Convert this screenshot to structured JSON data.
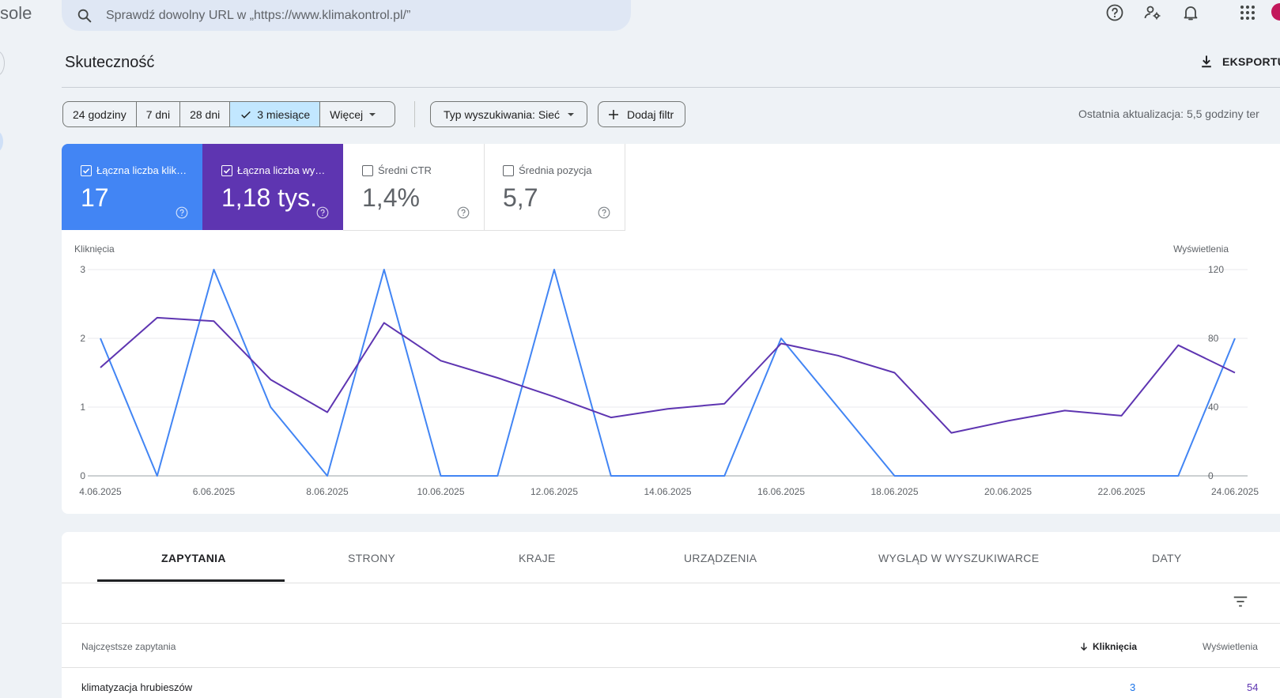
{
  "app": {
    "name_fragment": "sole"
  },
  "search": {
    "placeholder": "Sprawdź dowolny URL w „https://www.klimakontrol.pl/”"
  },
  "header": {
    "title": "Skuteczność",
    "export_label": "EKSPORTU"
  },
  "date_range": {
    "options": [
      "24 godziny",
      "7 dni",
      "28 dni",
      "3 miesiące",
      "Więcej"
    ],
    "selected": "3 miesiące"
  },
  "filters": {
    "search_type": "Typ wyszukiwania: Sieć",
    "add_filter": "Dodaj filtr",
    "last_update": "Ostatnia aktualizacja: 5,5 godziny ter"
  },
  "metrics": [
    {
      "label": "Łączna liczba klik…",
      "value": "17",
      "checked": true,
      "color": "#4285f4"
    },
    {
      "label": "Łączna liczba wy…",
      "value": "1,18 tys.",
      "checked": true,
      "color": "#5e35b1"
    },
    {
      "label": "Średni CTR",
      "value": "1,4%",
      "checked": false
    },
    {
      "label": "Średnia pozycja",
      "value": "5,7",
      "checked": false
    }
  ],
  "chart_data": {
    "type": "line",
    "x": [
      "4.06.2025",
      "5.06.2025",
      "6.06.2025",
      "7.06.2025",
      "8.06.2025",
      "9.06.2025",
      "10.06.2025",
      "11.06.2025",
      "12.06.2025",
      "13.06.2025",
      "14.06.2025",
      "15.06.2025",
      "16.06.2025",
      "17.06.2025",
      "18.06.2025",
      "19.06.2025",
      "20.06.2025",
      "21.06.2025",
      "22.06.2025",
      "23.06.2025",
      "24.06.2025"
    ],
    "x_tick_labels": [
      "4.06.2025",
      "6.06.2025",
      "8.06.2025",
      "10.06.2025",
      "12.06.2025",
      "14.06.2025",
      "16.06.2025",
      "18.06.2025",
      "20.06.2025",
      "22.06.2025",
      "24.06.2025"
    ],
    "y_left_label": "Kliknięcia",
    "y_right_label": "Wyświetlenia",
    "y_left_ticks": [
      "0",
      "1",
      "2",
      "3"
    ],
    "y_right_ticks": [
      "0",
      "40",
      "80",
      "120"
    ],
    "ylim_left": [
      0,
      3
    ],
    "ylim_right": [
      0,
      120
    ],
    "series": [
      {
        "name": "Kliknięcia",
        "axis": "left",
        "color": "#4285f4",
        "values": [
          2,
          0,
          3,
          1,
          0,
          3,
          0,
          0,
          3,
          0,
          0,
          0,
          2,
          1,
          0,
          0,
          0,
          0,
          0,
          0,
          2
        ]
      },
      {
        "name": "Wyświetlenia",
        "axis": "right",
        "color": "#5e35b1",
        "values": [
          63,
          92,
          90,
          56,
          37,
          89,
          67,
          57,
          46,
          34,
          39,
          42,
          77,
          70,
          60,
          25,
          32,
          38,
          35,
          76,
          60
        ]
      }
    ],
    "grid": true
  },
  "tabs": [
    "ZAPYTANIA",
    "STRONY",
    "KRAJE",
    "URZĄDZENIA",
    "WYGLĄD W WYSZUKIWARCE",
    "DATY"
  ],
  "active_tab": "ZAPYTANIA",
  "table": {
    "columns": [
      "Najczęstsze zapytania",
      "Kliknięcia",
      "Wyświetlenia"
    ],
    "rows": [
      {
        "query": "klimatyzacja hrubieszów",
        "clicks": "3",
        "impressions": "54"
      }
    ]
  }
}
